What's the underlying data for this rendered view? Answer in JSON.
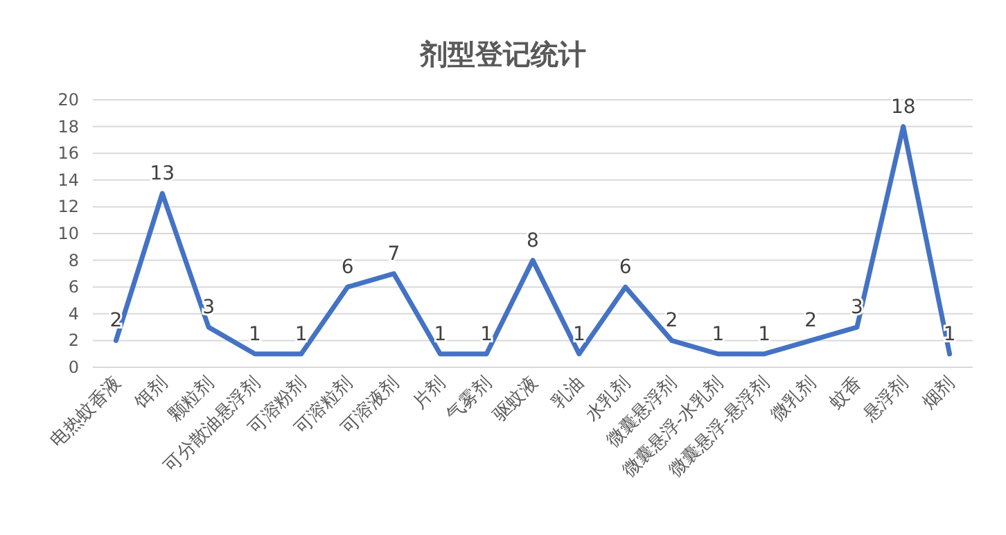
{
  "chart_data": {
    "type": "line",
    "title": "剂型登记统计",
    "categories": [
      "电热蚊香液",
      "饵剂",
      "颗粒剂",
      "可分散油悬浮剂",
      "可溶粉剂",
      "可溶粒剂",
      "可溶液剂",
      "片剂",
      "气雾剂",
      "驱蚊液",
      "乳油",
      "水乳剂",
      "微囊悬浮剂",
      "微囊悬浮-水乳剂",
      "微囊悬浮-悬浮剂",
      "微乳剂",
      "蚊香",
      "悬浮剂",
      "烟剂"
    ],
    "series": [
      {
        "color": "#4472c4",
        "values": [
          2,
          13,
          3,
          1,
          1,
          6,
          7,
          1,
          1,
          8,
          1,
          6,
          2,
          1,
          1,
          2,
          3,
          18,
          1
        ]
      }
    ],
    "ylim": [
      0,
      20
    ],
    "yticks": [
      0,
      2,
      4,
      6,
      8,
      10,
      12,
      14,
      16,
      18,
      20
    ],
    "grid": "y",
    "data_labels": true
  }
}
